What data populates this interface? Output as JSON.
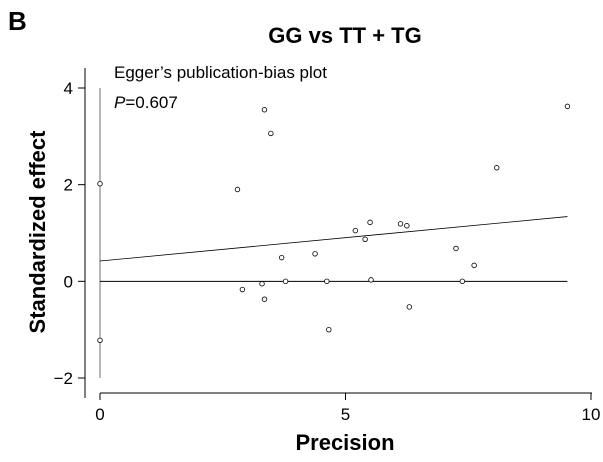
{
  "panel_label": "B",
  "chart_data": {
    "type": "scatter",
    "title": "GG vs TT + TG",
    "xlabel": "Precision",
    "ylabel": "Standardized effect",
    "annotation": "Egger’s publication-bias plot",
    "p_label": "P",
    "p_value": "=0.607",
    "xlim": [
      0,
      10
    ],
    "ylim": [
      -2,
      4
    ],
    "xticks": [
      "0",
      "5",
      "10"
    ],
    "yticks": [
      "−2",
      "0",
      "2",
      "4"
    ],
    "points": [
      {
        "x": 0.0,
        "y": 2.02
      },
      {
        "x": 0.0,
        "y": -1.22
      },
      {
        "x": 2.8,
        "y": 1.9
      },
      {
        "x": 2.9,
        "y": -0.17
      },
      {
        "x": 3.3,
        "y": -0.05
      },
      {
        "x": 3.35,
        "y": -0.37
      },
      {
        "x": 3.35,
        "y": 3.55
      },
      {
        "x": 3.48,
        "y": 3.06
      },
      {
        "x": 3.7,
        "y": 0.49
      },
      {
        "x": 3.78,
        "y": 0.0
      },
      {
        "x": 4.38,
        "y": 0.57
      },
      {
        "x": 4.62,
        "y": 0.0
      },
      {
        "x": 4.66,
        "y": -1.0
      },
      {
        "x": 5.2,
        "y": 1.05
      },
      {
        "x": 5.4,
        "y": 0.87
      },
      {
        "x": 5.5,
        "y": 1.22
      },
      {
        "x": 5.52,
        "y": 0.03
      },
      {
        "x": 6.12,
        "y": 1.19
      },
      {
        "x": 6.25,
        "y": 1.15
      },
      {
        "x": 6.3,
        "y": -0.53
      },
      {
        "x": 7.25,
        "y": 0.68
      },
      {
        "x": 7.38,
        "y": 0.0
      },
      {
        "x": 7.62,
        "y": 0.33
      },
      {
        "x": 8.08,
        "y": 2.35
      },
      {
        "x": 9.52,
        "y": 3.62
      }
    ],
    "regression_line": {
      "x": [
        0,
        9.52
      ],
      "y": [
        0.42,
        1.34
      ]
    },
    "reference_hline_y": 0,
    "ci_vline": {
      "x": 0,
      "y": [
        -2.0,
        4.0
      ]
    },
    "grid": false,
    "colors": {
      "points": "#000000",
      "lines": "#000000",
      "ci_line": "#888888"
    }
  }
}
